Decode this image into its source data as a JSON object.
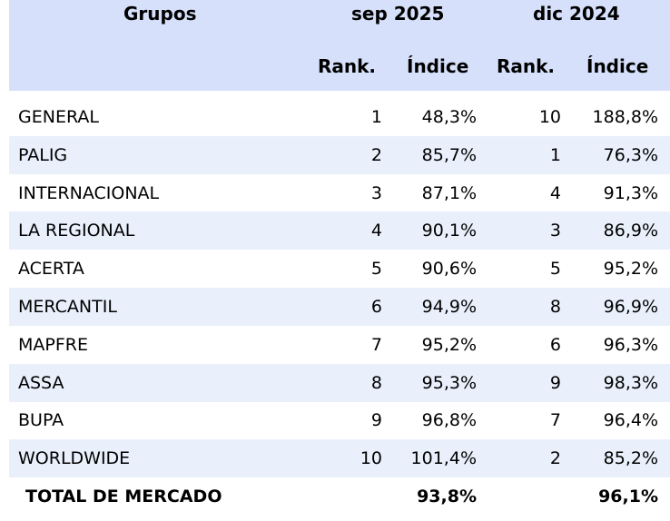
{
  "header": {
    "groups_label": "Grupos",
    "period1": "sep 2025",
    "period2": "dic 2024",
    "rank_label": "Rank.",
    "index_label": "Índice"
  },
  "rows": [
    {
      "name": "GENERAL",
      "rank1": "1",
      "index1": "48,3%",
      "rank2": "10",
      "index2": "188,8%"
    },
    {
      "name": "PALIG",
      "rank1": "2",
      "index1": "85,7%",
      "rank2": "1",
      "index2": "76,3%"
    },
    {
      "name": "INTERNACIONAL",
      "rank1": "3",
      "index1": "87,1%",
      "rank2": "4",
      "index2": "91,3%"
    },
    {
      "name": "LA REGIONAL",
      "rank1": "4",
      "index1": "90,1%",
      "rank2": "3",
      "index2": "86,9%"
    },
    {
      "name": "ACERTA",
      "rank1": "5",
      "index1": "90,6%",
      "rank2": "5",
      "index2": "95,2%"
    },
    {
      "name": "MERCANTIL",
      "rank1": "6",
      "index1": "94,9%",
      "rank2": "8",
      "index2": "96,9%"
    },
    {
      "name": "MAPFRE",
      "rank1": "7",
      "index1": "95,2%",
      "rank2": "6",
      "index2": "96,3%"
    },
    {
      "name": "ASSA",
      "rank1": "8",
      "index1": "95,3%",
      "rank2": "9",
      "index2": "98,3%"
    },
    {
      "name": "BUPA",
      "rank1": "9",
      "index1": "96,8%",
      "rank2": "7",
      "index2": "96,4%"
    },
    {
      "name": "WORLDWIDE",
      "rank1": "10",
      "index1": "101,4%",
      "rank2": "2",
      "index2": "85,2%"
    }
  ],
  "total": {
    "name": "TOTAL DE MERCADO",
    "index1": "93,8%",
    "index2": "96,1%"
  },
  "colors": {
    "header_bg": "#d6e0fa",
    "alt_row_bg": "#e9f0fc"
  }
}
